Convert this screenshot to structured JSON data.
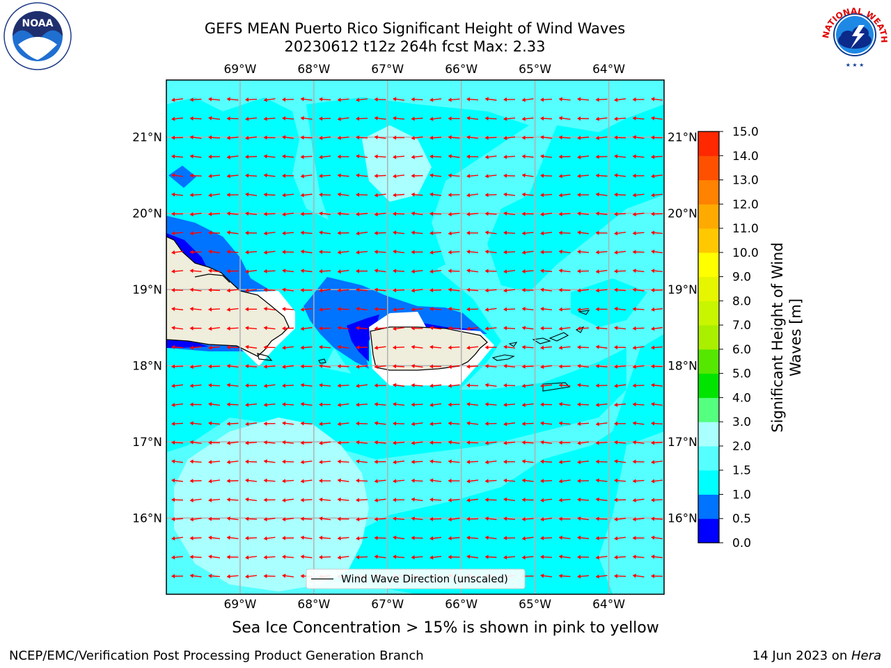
{
  "title_line1": "GEFS MEAN Puerto Rico Significant Height of Wind Waves",
  "title_line2": "20230612 t12z 264h fcst   Max: 2.33",
  "map": {
    "lon_range": [
      -70,
      -63.25
    ],
    "lat_range": [
      15,
      21.75
    ],
    "lon_ticks": [
      -69,
      -68,
      -67,
      -66,
      -65,
      -64
    ],
    "lon_tick_labels": [
      "69°W",
      "68°W",
      "67°W",
      "66°W",
      "65°W",
      "64°W"
    ],
    "lat_ticks": [
      16,
      17,
      18,
      19,
      20,
      21
    ],
    "lat_tick_labels": [
      "16°N",
      "17°N",
      "18°N",
      "19°N",
      "20°N",
      "21°N"
    ],
    "grid": true,
    "arrow_direction": "east-to-west",
    "legend_label": "Wind Wave Direction (unscaled)",
    "legend_placement": "bottom-center"
  },
  "colorbar": {
    "label": "Significant Height of Wind Waves [m]",
    "label_line1": "Significant Height of Wind",
    "label_line2": "Waves [m]",
    "levels": [
      0.0,
      0.5,
      1.0,
      1.5,
      2.0,
      3.0,
      4.0,
      5.0,
      6.0,
      7.0,
      8.0,
      9.0,
      10.0,
      11.0,
      12.0,
      13.0,
      14.0,
      15.0
    ],
    "level_labels": [
      "0.0",
      "0.5",
      "1.0",
      "1.5",
      "2.0",
      "3.0",
      "4.0",
      "5.0",
      "6.0",
      "7.0",
      "8.0",
      "9.0",
      "10.0",
      "11.0",
      "12.0",
      "13.0",
      "14.0",
      "15.0"
    ],
    "colors": [
      "#0000ff",
      "#0073ff",
      "#00ffff",
      "#55ffff",
      "#aaffff",
      "#55ff7f",
      "#00e400",
      "#55e700",
      "#aaee00",
      "#c8f500",
      "#e6f500",
      "#ffff00",
      "#ffc800",
      "#ffaa00",
      "#ff8200",
      "#ff5000",
      "#ff2800",
      "#ff0000"
    ]
  },
  "colors": {
    "band_0_5": "#0000ff",
    "band_0_5_1": "#0073ff",
    "band_1_1_5": "#00ffff",
    "band_1_5_2": "#55ffff",
    "band_2_3": "#aaffff",
    "land": "#efeddb",
    "arrow": "#ff0000",
    "grid": "#b0b0b0"
  },
  "caption": "Sea Ice Concentration > 15% is shown in pink to yellow",
  "footer_left": "NCEP/EMC/Verification Post Processing Product Generation Branch",
  "footer_right_prefix": "14 Jun 2023 on ",
  "footer_right_machine": "Hera",
  "logos": {
    "noaa": "NOAA",
    "nws_text": "NATIONAL WEATHER SERVICE"
  }
}
